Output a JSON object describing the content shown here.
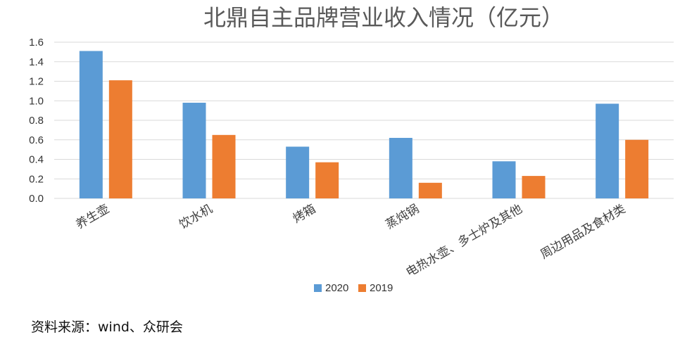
{
  "chart_data": {
    "type": "bar",
    "title": "北鼎自主品牌营业收入情况（亿元）",
    "categories": [
      "养生壶",
      "饮水机",
      "烤箱",
      "蒸炖锅",
      "电热水壶、多士炉及其他",
      "周边用品及食材类"
    ],
    "series": [
      {
        "name": "2020",
        "values": [
          1.51,
          0.98,
          0.53,
          0.62,
          0.38,
          0.97
        ],
        "color": "#5B9BD5"
      },
      {
        "name": "2019",
        "values": [
          1.21,
          0.65,
          0.37,
          0.16,
          0.23,
          0.6
        ],
        "color": "#ED7D31"
      }
    ],
    "y_ticks": [
      "0.0",
      "0.2",
      "0.4",
      "0.6",
      "0.8",
      "1.0",
      "1.2",
      "1.4",
      "1.6"
    ],
    "ylim": [
      0,
      1.6
    ],
    "grid": true,
    "legend_position": "bottom"
  },
  "source_note": "资料来源：wind、众研会"
}
